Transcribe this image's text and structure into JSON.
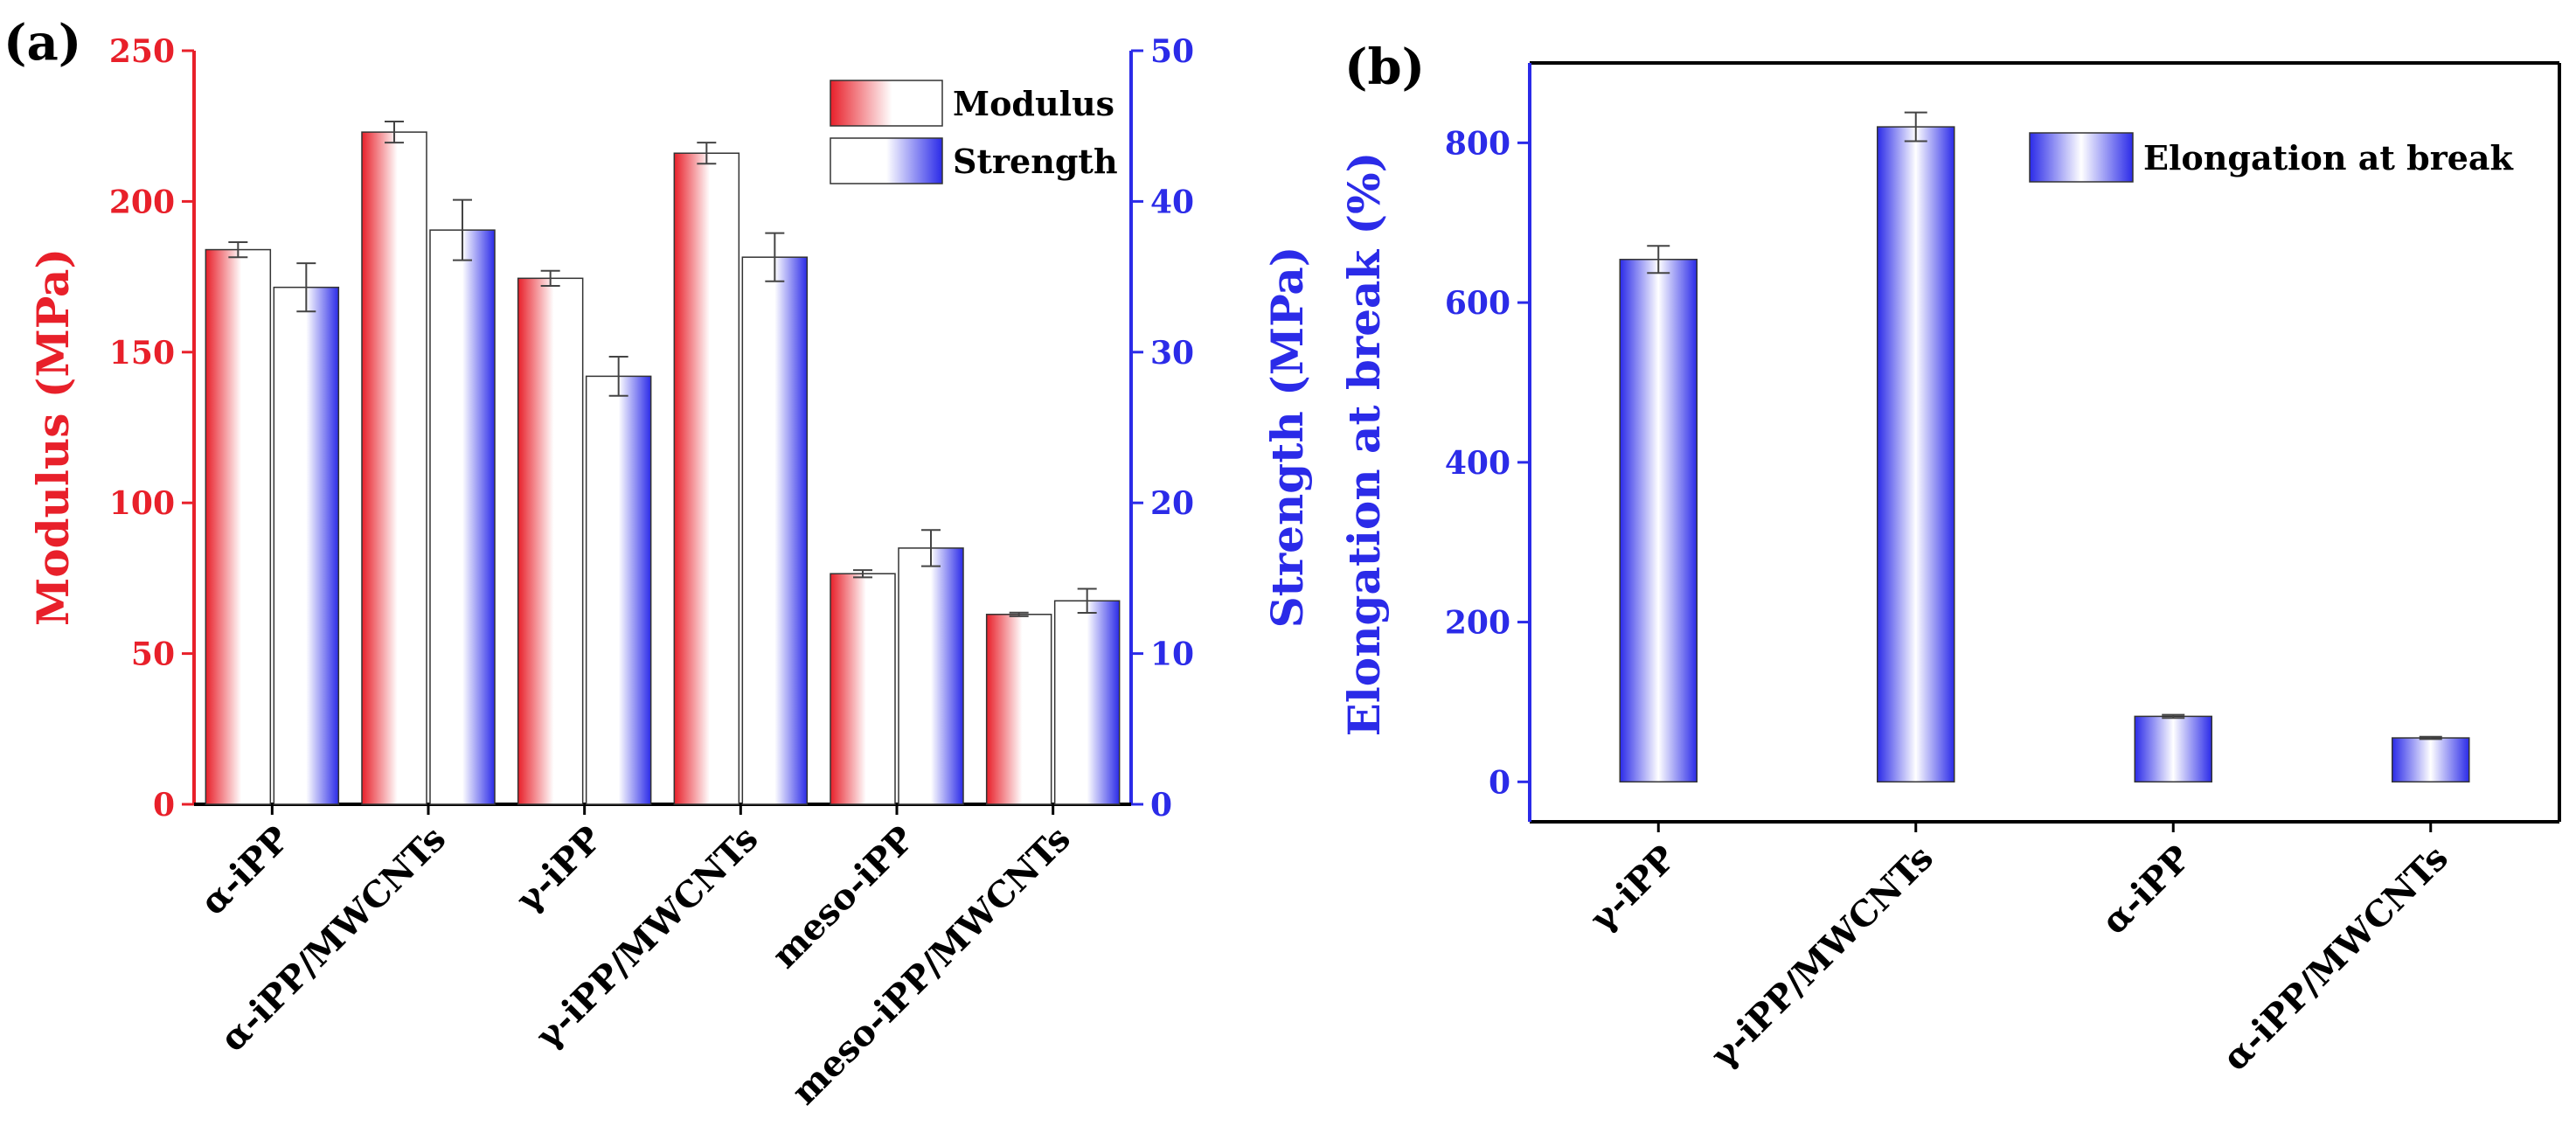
{
  "colors": {
    "modulus": "#e8202a",
    "strength": "#2b2be8",
    "elongation": "#2b2be8",
    "axis": "#000000"
  },
  "chart_data": [
    {
      "panel_label": "(a)",
      "type": "bar",
      "categories": [
        "α-iPP",
        "α-iPP/MWCNTs",
        "γ-iPP",
        "γ-iPP/MWCNTs",
        "meso-iPP",
        "meso-iPP/MWCNTs"
      ],
      "ylabel": "Modulus (MPa)",
      "y2label": "Strength (MPa)",
      "ylim": [
        0,
        250
      ],
      "y2lim": [
        0,
        50
      ],
      "yticks": [
        0,
        50,
        100,
        150,
        200,
        250
      ],
      "y2ticks": [
        0,
        10,
        20,
        30,
        40,
        50
      ],
      "legend_position": "top-right",
      "series": [
        {
          "name": "Modulus",
          "axis": "left",
          "values": [
            184,
            223,
            174.5,
            216,
            76.5,
            63
          ],
          "errors": [
            2.5,
            3.5,
            2.5,
            3.5,
            1.2,
            0.6
          ]
        },
        {
          "name": "Strength",
          "axis": "right",
          "values": [
            34.3,
            38.1,
            28.4,
            36.3,
            17,
            13.5
          ],
          "errors": [
            1.6,
            2.0,
            1.3,
            1.6,
            1.2,
            0.8
          ]
        }
      ]
    },
    {
      "panel_label": "(b)",
      "type": "bar",
      "categories": [
        "γ-iPP",
        "γ-iPP/MWCNTs",
        "α-iPP",
        "α-iPP/MWCNTs"
      ],
      "ylabel": "Elongation at break (%)",
      "ylim": [
        -50,
        900
      ],
      "yticks": [
        0,
        200,
        400,
        600,
        800
      ],
      "legend_position": "top-right",
      "series": [
        {
          "name": "Elongation at break",
          "values": [
            654,
            820,
            82,
            55
          ],
          "errors": [
            17,
            18,
            2,
            1.5
          ]
        }
      ]
    }
  ]
}
